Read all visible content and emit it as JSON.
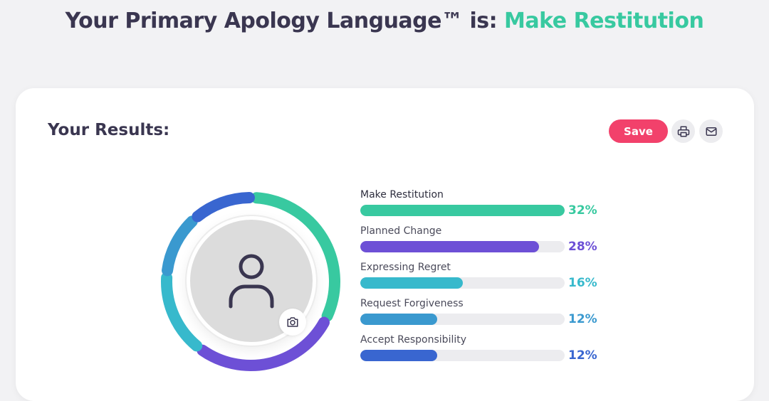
{
  "header": {
    "prefix": "Your Primary Apology Language™ is:",
    "result": "Make Restitution"
  },
  "card": {
    "title": "Your Results:",
    "save_label": "Save"
  },
  "icons": {
    "print": "printer-icon",
    "email": "envelope-icon",
    "camera": "camera-icon",
    "avatar": "user-silhouette-icon"
  },
  "results": [
    {
      "label": "Make Restitution",
      "percent": "32%",
      "value": 32,
      "color": "#38c9a0"
    },
    {
      "label": "Planned Change",
      "percent": "28%",
      "value": 28,
      "color": "#6d50d6"
    },
    {
      "label": "Expressing Regret",
      "percent": "16%",
      "value": 16,
      "color": "#37b9cc"
    },
    {
      "label": "Request Forgiveness",
      "percent": "12%",
      "value": 12,
      "color": "#3a99cf"
    },
    {
      "label": "Accept Responsibility",
      "percent": "12%",
      "value": 12,
      "color": "#3966d0"
    }
  ]
}
